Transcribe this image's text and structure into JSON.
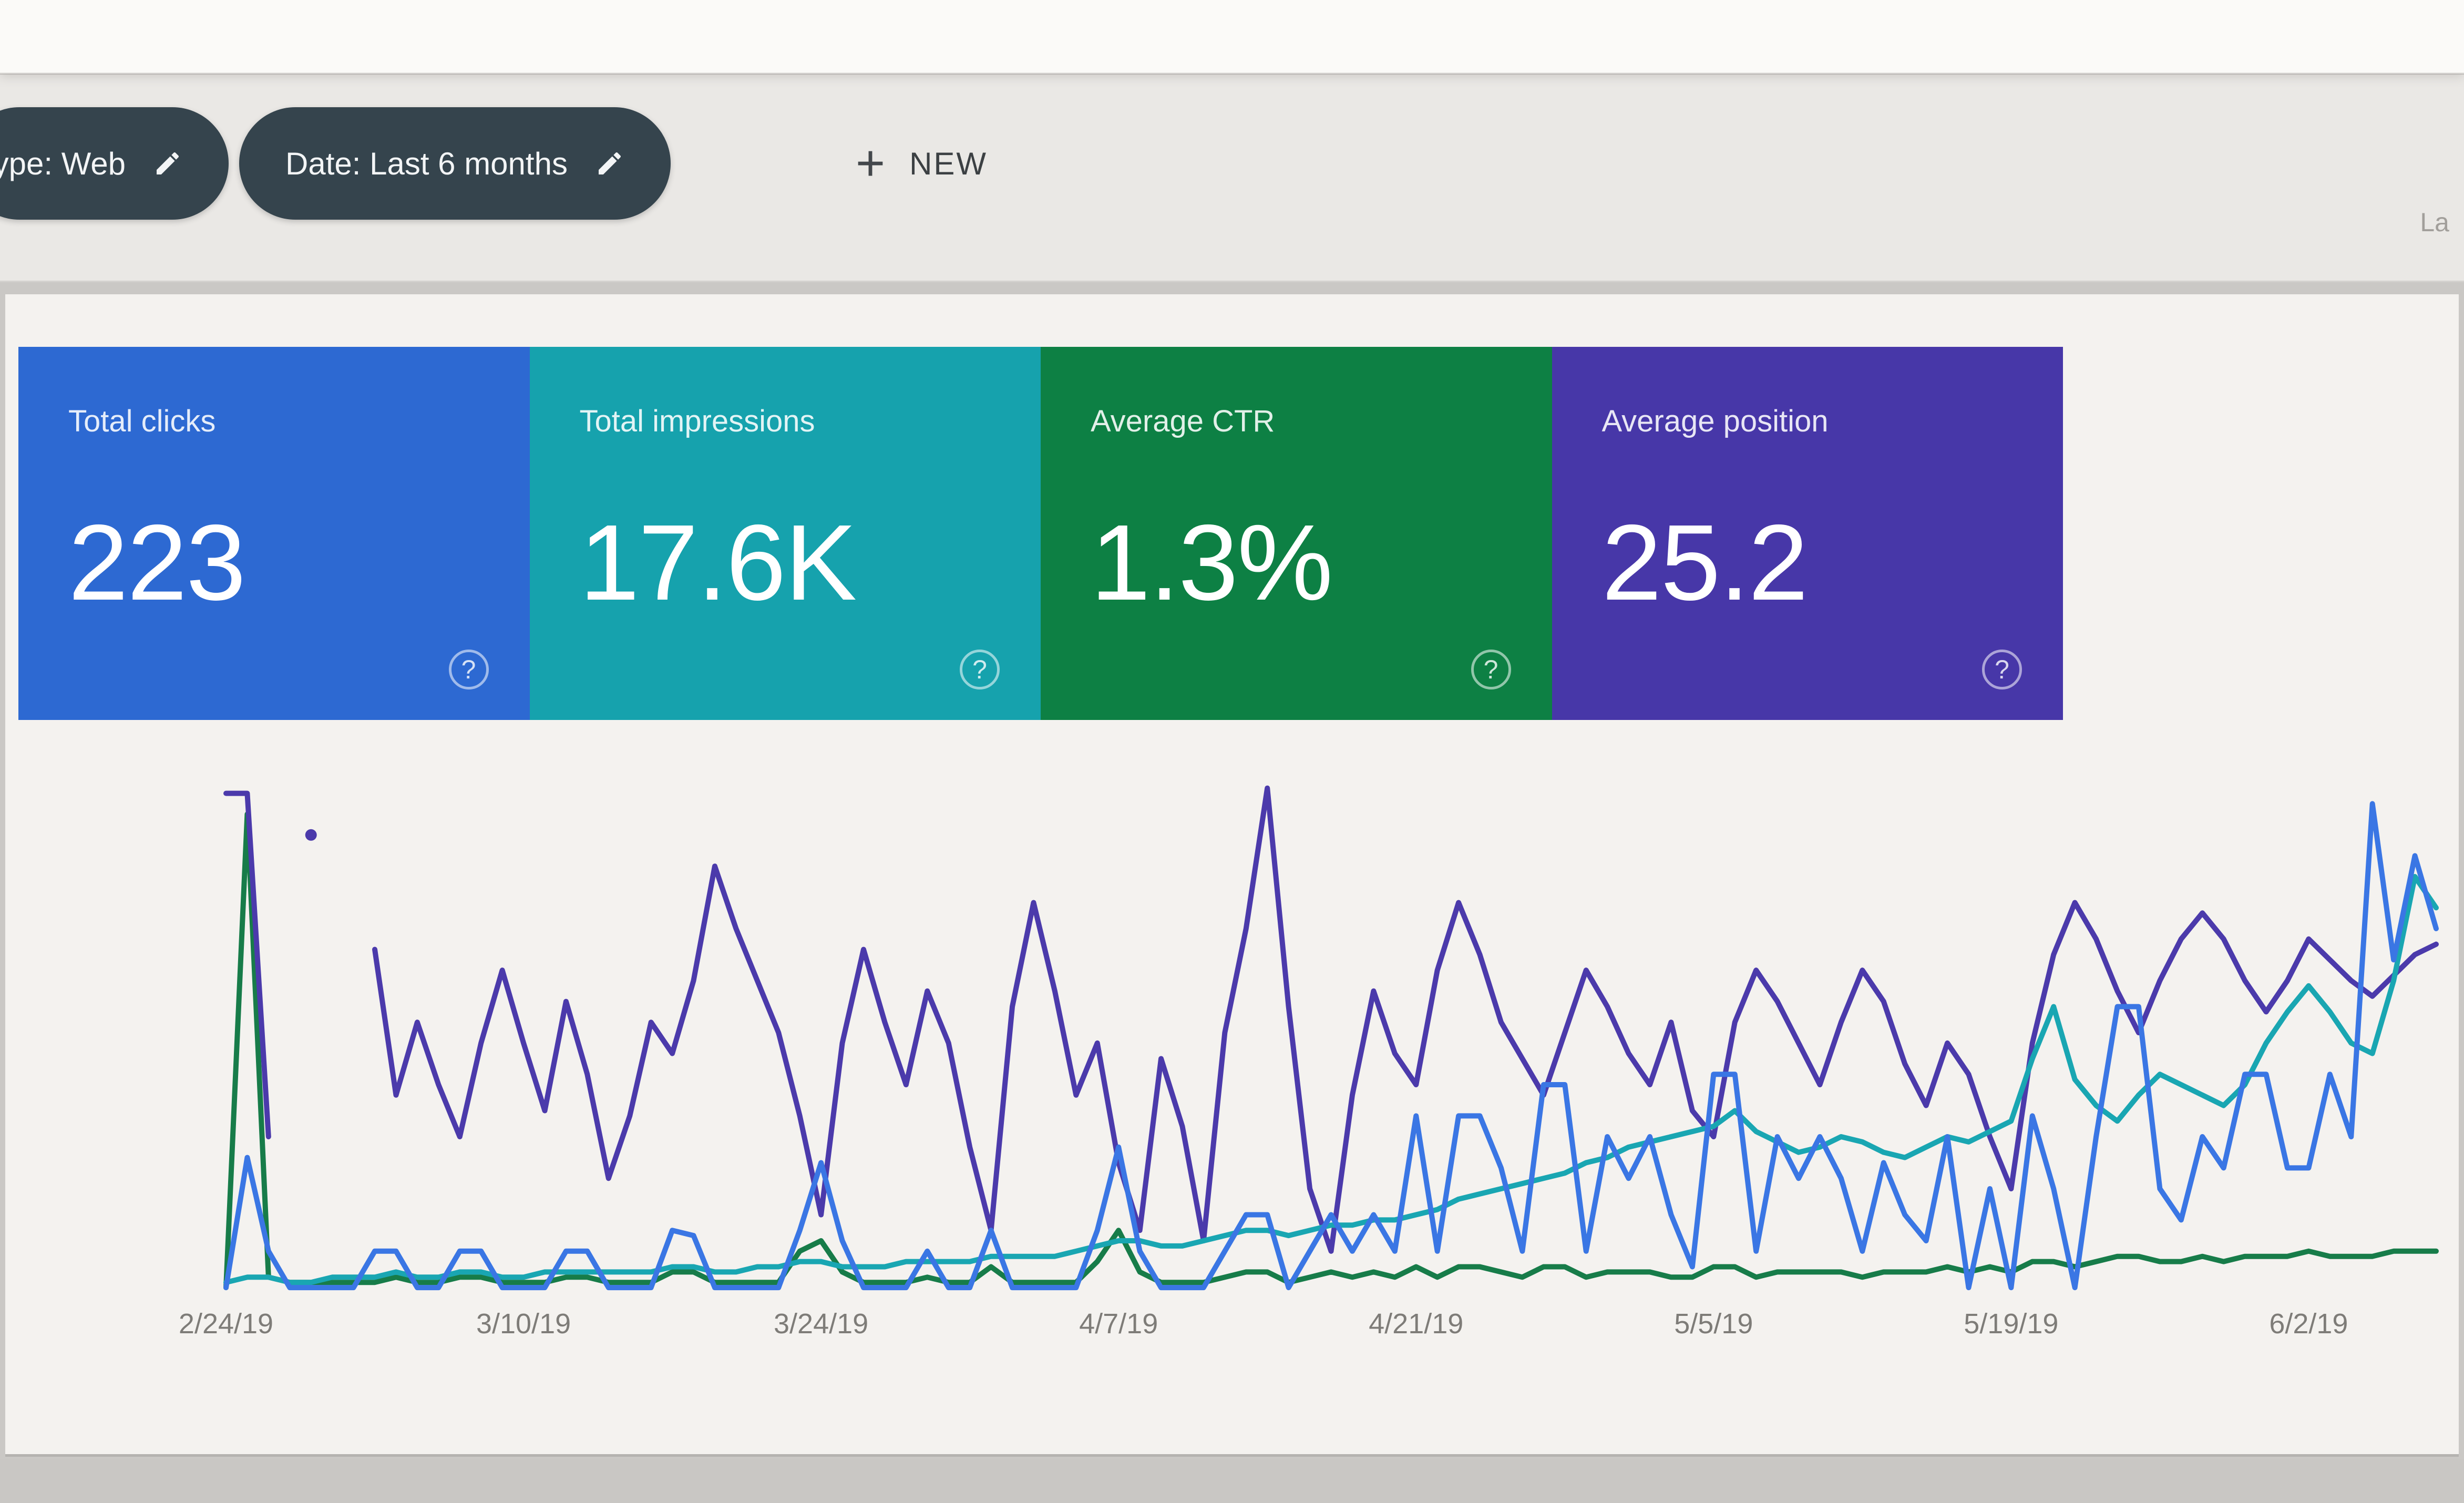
{
  "toolbar": {
    "chips": [
      {
        "label": "type: Web"
      },
      {
        "label": "Date: Last 6 months"
      }
    ],
    "new_button": {
      "plus_glyph": "+",
      "label": "NEW"
    },
    "right_truncated_text": "La"
  },
  "summary_cards": [
    {
      "label": "Total clicks",
      "value": "223",
      "color": "#2d69d2",
      "help_glyph": "?"
    },
    {
      "label": "Total impressions",
      "value": "17.6K",
      "color": "#16a2ad",
      "help_glyph": "?"
    },
    {
      "label": "Average CTR",
      "value": "1.3%",
      "color": "#0d8044",
      "help_glyph": "?"
    },
    {
      "label": "Average position",
      "value": "25.2",
      "color": "#4737a8",
      "help_glyph": "?"
    }
  ],
  "chart_data": {
    "type": "line",
    "grid": false,
    "legend": false,
    "x_axis": {
      "start_date": "2/24/19",
      "days_total": 105,
      "ticks": [
        {
          "day": 0,
          "label": "2/24/19"
        },
        {
          "day": 14,
          "label": "3/10/19"
        },
        {
          "day": 28,
          "label": "3/24/19"
        },
        {
          "day": 42,
          "label": "4/7/19"
        },
        {
          "day": 56,
          "label": "4/21/19"
        },
        {
          "day": 70,
          "label": "5/5/19"
        },
        {
          "day": 84,
          "label": "5/19/19"
        },
        {
          "day": 98,
          "label": "6/2/19"
        }
      ]
    },
    "y_axis": {
      "visible_labels": false,
      "values_unit": "estimated percent of plot height (no y-axis shown in screenshot)"
    },
    "draw_order": [
      2,
      3,
      1,
      0
    ],
    "series": [
      {
        "name": "Total clicks",
        "color": "#3a76e4",
        "values": [
          1,
          26,
          8,
          1,
          1,
          1,
          1,
          8,
          8,
          1,
          1,
          8,
          8,
          1,
          1,
          1,
          8,
          8,
          1,
          1,
          1,
          12,
          11,
          1,
          1,
          1,
          1,
          12,
          25,
          10,
          1,
          1,
          1,
          8,
          1,
          1,
          12,
          1,
          1,
          1,
          1,
          12,
          28,
          8,
          1,
          1,
          1,
          8,
          15,
          15,
          1,
          8,
          15,
          8,
          15,
          8,
          34,
          8,
          34,
          34,
          24,
          8,
          40,
          40,
          8,
          30,
          22,
          30,
          15,
          5,
          42,
          42,
          8,
          30,
          22,
          30,
          22,
          8,
          25,
          15,
          10,
          30,
          1,
          20,
          1,
          34,
          20,
          1,
          30,
          55,
          55,
          20,
          14,
          30,
          24,
          42,
          42,
          24,
          24,
          42,
          30,
          94,
          64,
          84,
          70
        ]
      },
      {
        "name": "Total impressions",
        "color": "#19a6b2",
        "values": [
          2,
          3,
          3,
          2,
          2,
          3,
          3,
          3,
          4,
          3,
          3,
          4,
          4,
          3,
          3,
          4,
          4,
          4,
          4,
          4,
          4,
          5,
          5,
          4,
          4,
          5,
          5,
          6,
          6,
          5,
          5,
          5,
          6,
          6,
          6,
          6,
          7,
          7,
          7,
          7,
          8,
          9,
          10,
          10,
          9,
          9,
          10,
          11,
          12,
          12,
          11,
          12,
          13,
          13,
          14,
          14,
          15,
          16,
          18,
          19,
          20,
          21,
          22,
          23,
          25,
          26,
          28,
          29,
          30,
          31,
          32,
          35,
          31,
          29,
          27,
          28,
          30,
          29,
          27,
          26,
          28,
          30,
          29,
          31,
          33,
          45,
          55,
          41,
          36,
          33,
          38,
          42,
          40,
          38,
          36,
          40,
          48,
          54,
          59,
          54,
          48,
          46,
          60,
          80,
          74
        ]
      },
      {
        "name": "Average CTR",
        "color": "#177c49",
        "values": [
          1,
          92,
          3,
          2,
          2,
          2,
          2,
          2,
          3,
          2,
          2,
          3,
          3,
          2,
          2,
          2,
          3,
          3,
          2,
          2,
          2,
          4,
          4,
          2,
          2,
          2,
          2,
          8,
          10,
          4,
          2,
          2,
          2,
          3,
          2,
          2,
          5,
          2,
          2,
          2,
          2,
          6,
          12,
          4,
          2,
          2,
          2,
          3,
          4,
          4,
          2,
          3,
          4,
          3,
          4,
          3,
          5,
          3,
          5,
          5,
          4,
          3,
          5,
          5,
          3,
          4,
          4,
          4,
          3,
          3,
          5,
          5,
          3,
          4,
          4,
          4,
          4,
          3,
          4,
          4,
          4,
          5,
          4,
          5,
          4,
          6,
          6,
          5,
          6,
          7,
          7,
          6,
          6,
          7,
          6,
          7,
          7,
          7,
          8,
          7,
          7,
          7,
          8,
          8,
          8
        ]
      },
      {
        "name": "Average position",
        "color": "#4b3aab",
        "values": [
          96,
          96,
          30,
          null,
          null,
          null,
          null,
          66,
          38,
          52,
          40,
          30,
          48,
          62,
          48,
          35,
          56,
          42,
          22,
          34,
          52,
          46,
          60,
          82,
          70,
          60,
          50,
          34,
          15,
          48,
          66,
          52,
          40,
          58,
          48,
          28,
          12,
          55,
          75,
          58,
          38,
          48,
          25,
          12,
          45,
          32,
          10,
          50,
          70,
          97,
          55,
          20,
          8,
          38,
          58,
          46,
          40,
          62,
          75,
          65,
          52,
          45,
          38,
          50,
          62,
          55,
          46,
          40,
          52,
          35,
          30,
          52,
          62,
          56,
          48,
          40,
          52,
          62,
          56,
          44,
          36,
          48,
          42,
          30,
          20,
          48,
          65,
          75,
          68,
          58,
          50,
          60,
          68,
          73,
          68,
          60,
          54,
          60,
          68,
          64,
          60,
          57,
          61,
          65,
          67
        ]
      }
    ],
    "annotations": {
      "isolated_points": [
        {
          "series": "Average position",
          "day": 4,
          "value": 88
        }
      ]
    }
  }
}
